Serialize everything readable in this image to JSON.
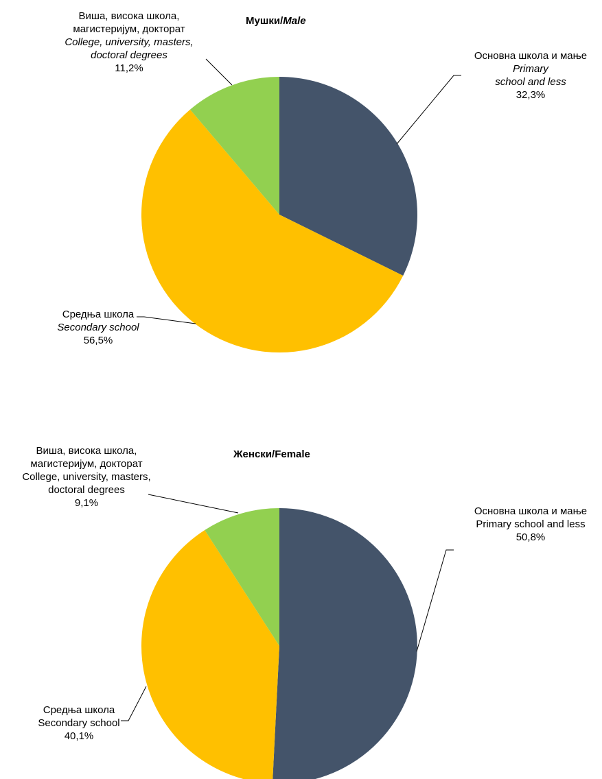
{
  "chart_data": [
    {
      "type": "pie",
      "title_bold": "Мушки/",
      "title_italic": "Male",
      "slices": [
        {
          "key": "primary",
          "label_sr": "Основна школа и мање",
          "label_en_1": "Primary",
          "label_en_2": "school and less",
          "value": 32.3,
          "value_label": "32,3%",
          "color": "#44546A"
        },
        {
          "key": "secondary",
          "label_sr": "Средња школа",
          "label_en": "Secondary school",
          "value": 56.5,
          "value_label": "56,5%",
          "color": "#FFC000"
        },
        {
          "key": "college",
          "label_sr_1": "Виша, висока школа,",
          "label_sr_2": "магистеријум, докторат",
          "label_en_1": "College, university, masters,",
          "label_en_2": "doctoral degrees",
          "value": 11.2,
          "value_label": "11,2%",
          "color": "#92D050"
        }
      ]
    },
    {
      "type": "pie",
      "title": "Женски/Female",
      "slices": [
        {
          "key": "primary",
          "label_sr": "Основна школа и мање",
          "label_en": "Primary school and less",
          "value": 50.8,
          "value_label": "50,8%",
          "color": "#44546A"
        },
        {
          "key": "secondary",
          "label_sr": "Средња школа",
          "label_en": "Secondary school",
          "value": 40.1,
          "value_label": "40,1%",
          "color": "#FFC000"
        },
        {
          "key": "college",
          "label_sr_1": "Виша, висока школа,",
          "label_sr_2": "магистеријум, докторат",
          "label_en_1": "College, university, masters,",
          "label_en_2": "doctoral degrees",
          "value": 9.1,
          "value_label": "9,1%",
          "color": "#92D050"
        }
      ]
    }
  ]
}
